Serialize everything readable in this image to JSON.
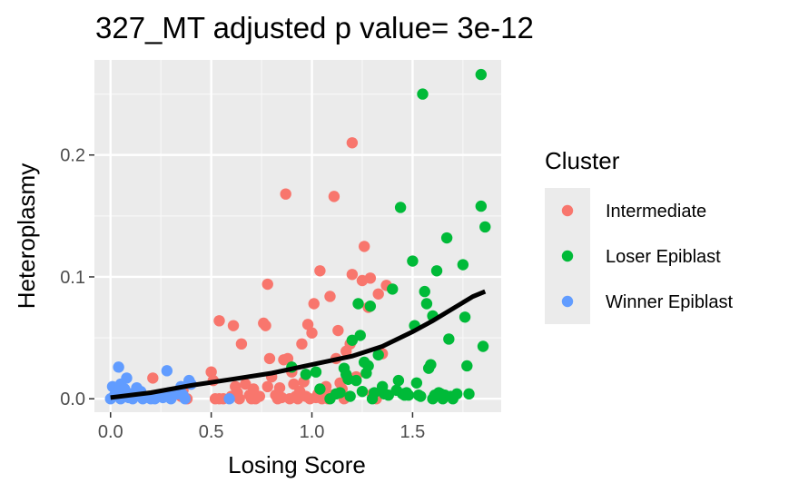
{
  "chart_data": {
    "type": "scatter",
    "title": "327_MT adjusted p value= 3e-12",
    "xlabel": "Losing Score",
    "ylabel": "Heteroplasmy",
    "xlim": [
      -0.08,
      1.94
    ],
    "ylim": [
      -0.011,
      0.278
    ],
    "x_ticks": [
      0.0,
      0.5,
      1.0,
      1.5
    ],
    "x_tick_labels": [
      "0.0",
      "0.5",
      "1.0",
      "1.5"
    ],
    "y_ticks": [
      0.0,
      0.1,
      0.2
    ],
    "y_tick_labels": [
      "0.0",
      "0.1",
      "0.2"
    ],
    "grid": true,
    "legend": {
      "title": "Cluster",
      "position": "right"
    },
    "series": [
      {
        "name": "Intermediate",
        "color": "#F8766D",
        "points": [
          [
            0.21,
            0.017
          ],
          [
            0.35,
            0.002
          ],
          [
            0.36,
            0.007
          ],
          [
            0.38,
            0.0
          ],
          [
            0.5,
            0.022
          ],
          [
            0.51,
            0.015
          ],
          [
            0.52,
            0.0
          ],
          [
            0.54,
            0.0
          ],
          [
            0.54,
            0.064
          ],
          [
            0.56,
            0.0
          ],
          [
            0.6,
            0.002
          ],
          [
            0.61,
            0.06
          ],
          [
            0.62,
            0.01
          ],
          [
            0.63,
            0.005
          ],
          [
            0.64,
            0.0
          ],
          [
            0.65,
            0.045
          ],
          [
            0.67,
            0.012
          ],
          [
            0.69,
            0.003
          ],
          [
            0.7,
            0.0
          ],
          [
            0.71,
            0.008
          ],
          [
            0.72,
            0.0
          ],
          [
            0.74,
            0.002
          ],
          [
            0.76,
            0.062
          ],
          [
            0.77,
            0.06
          ],
          [
            0.78,
            0.094
          ],
          [
            0.78,
            0.01
          ],
          [
            0.79,
            0.033
          ],
          [
            0.8,
            0.018
          ],
          [
            0.82,
            0.003
          ],
          [
            0.83,
            0.0
          ],
          [
            0.84,
            0.009
          ],
          [
            0.85,
            0.001
          ],
          [
            0.86,
            0.032
          ],
          [
            0.87,
            0.168
          ],
          [
            0.88,
            0.033
          ],
          [
            0.89,
            0.0
          ],
          [
            0.9,
            0.022
          ],
          [
            0.91,
            0.012
          ],
          [
            0.92,
            0.002
          ],
          [
            0.93,
            0.0
          ],
          [
            0.94,
            0.006
          ],
          [
            0.95,
            0.045
          ],
          [
            0.96,
            0.014
          ],
          [
            0.97,
            0.002
          ],
          [
            0.98,
            0.061
          ],
          [
            0.99,
            0.0
          ],
          [
            1.0,
            0.054
          ],
          [
            1.01,
            0.078
          ],
          [
            1.02,
            0.001
          ],
          [
            1.03,
            0.004
          ],
          [
            1.04,
            0.105
          ],
          [
            1.05,
            0.0
          ],
          [
            1.06,
            0.002
          ],
          [
            1.07,
            0.01
          ],
          [
            1.08,
            0.0
          ],
          [
            1.09,
            0.084
          ],
          [
            1.1,
            0.003
          ],
          [
            1.11,
            0.166
          ],
          [
            1.12,
            0.033
          ],
          [
            1.13,
            0.056
          ],
          [
            1.14,
            0.013
          ],
          [
            1.15,
            0.008
          ],
          [
            1.16,
            0.0
          ],
          [
            1.17,
            0.039
          ],
          [
            1.19,
            0.045
          ],
          [
            1.2,
            0.21
          ],
          [
            1.2,
            0.102
          ],
          [
            1.22,
            0.018
          ],
          [
            1.25,
            0.097
          ],
          [
            1.26,
            0.125
          ],
          [
            1.28,
            0.075
          ],
          [
            1.29,
            0.099
          ],
          [
            1.3,
            0.004
          ],
          [
            1.32,
            0.0
          ],
          [
            1.33,
            0.086
          ],
          [
            1.35,
            0.037
          ],
          [
            1.37,
            0.093
          ]
        ]
      },
      {
        "name": "Loser Epiblast",
        "color": "#00BA38",
        "points": [
          [
            0.9,
            0.026
          ],
          [
            0.97,
            0.02
          ],
          [
            1.02,
            0.022
          ],
          [
            1.04,
            0.008
          ],
          [
            1.09,
            0.0
          ],
          [
            1.12,
            0.004
          ],
          [
            1.14,
            0.005
          ],
          [
            1.16,
            0.025
          ],
          [
            1.17,
            0.02
          ],
          [
            1.18,
            0.016
          ],
          [
            1.19,
            0.002
          ],
          [
            1.2,
            0.048
          ],
          [
            1.22,
            0.015
          ],
          [
            1.23,
            0.078
          ],
          [
            1.24,
            0.052
          ],
          [
            1.25,
            0.006
          ],
          [
            1.26,
            0.03
          ],
          [
            1.27,
            0.021
          ],
          [
            1.28,
            0.027
          ],
          [
            1.29,
            0.076
          ],
          [
            1.3,
            0.0
          ],
          [
            1.31,
            0.005
          ],
          [
            1.33,
            0.036
          ],
          [
            1.35,
            0.01
          ],
          [
            1.36,
            0.004
          ],
          [
            1.38,
            0.003
          ],
          [
            1.4,
            0.09
          ],
          [
            1.42,
            0.007
          ],
          [
            1.43,
            0.015
          ],
          [
            1.44,
            0.157
          ],
          [
            1.45,
            0.004
          ],
          [
            1.46,
            0.003
          ],
          [
            1.47,
            0.005
          ],
          [
            1.48,
            0.003
          ],
          [
            1.5,
            0.113
          ],
          [
            1.51,
            0.06
          ],
          [
            1.52,
            0.013
          ],
          [
            1.53,
            0.003
          ],
          [
            1.54,
            0.002
          ],
          [
            1.55,
            0.25
          ],
          [
            1.56,
            0.088
          ],
          [
            1.57,
            0.078
          ],
          [
            1.58,
            0.025
          ],
          [
            1.59,
            0.028
          ],
          [
            1.6,
            0.068
          ],
          [
            1.6,
            0.0
          ],
          [
            1.61,
            0.003
          ],
          [
            1.62,
            0.105
          ],
          [
            1.63,
            0.005
          ],
          [
            1.64,
            0.004
          ],
          [
            1.65,
            0.0
          ],
          [
            1.66,
            0.003
          ],
          [
            1.67,
            0.132
          ],
          [
            1.68,
            0.049
          ],
          [
            1.69,
            0.002
          ],
          [
            1.7,
            0.0
          ],
          [
            1.72,
            0.004
          ],
          [
            1.75,
            0.11
          ],
          [
            1.76,
            0.067
          ],
          [
            1.77,
            0.027
          ],
          [
            1.78,
            0.004
          ],
          [
            1.84,
            0.158
          ],
          [
            1.84,
            0.266
          ],
          [
            1.85,
            0.043
          ],
          [
            1.86,
            0.141
          ]
        ]
      },
      {
        "name": "Winner Epiblast",
        "color": "#619CFF",
        "points": [
          [
            0.0,
            0.0
          ],
          [
            0.01,
            0.01
          ],
          [
            0.02,
            0.003
          ],
          [
            0.03,
            0.005
          ],
          [
            0.04,
            0.026
          ],
          [
            0.05,
            0.012
          ],
          [
            0.05,
            0.0
          ],
          [
            0.06,
            0.002
          ],
          [
            0.07,
            0.008
          ],
          [
            0.08,
            0.017
          ],
          [
            0.09,
            0.001
          ],
          [
            0.1,
            0.004
          ],
          [
            0.11,
            0.0
          ],
          [
            0.12,
            0.002
          ],
          [
            0.13,
            0.009
          ],
          [
            0.14,
            0.003
          ],
          [
            0.15,
            0.006
          ],
          [
            0.16,
            0.0
          ],
          [
            0.17,
            0.001
          ],
          [
            0.19,
            0.002
          ],
          [
            0.2,
            0.0
          ],
          [
            0.22,
            0.0
          ],
          [
            0.24,
            0.003
          ],
          [
            0.26,
            0.001
          ],
          [
            0.28,
            0.023
          ],
          [
            0.29,
            0.005
          ],
          [
            0.3,
            0.0
          ],
          [
            0.33,
            0.004
          ],
          [
            0.35,
            0.01
          ],
          [
            0.36,
            0.003
          ],
          [
            0.37,
            0.0
          ],
          [
            0.39,
            0.015
          ],
          [
            0.4,
            0.012
          ],
          [
            0.59,
            0.0
          ]
        ]
      }
    ],
    "trend_line": {
      "color": "#000000",
      "points": [
        [
          0.0,
          0.001
        ],
        [
          0.2,
          0.005
        ],
        [
          0.4,
          0.011
        ],
        [
          0.6,
          0.016
        ],
        [
          0.8,
          0.021
        ],
        [
          1.0,
          0.028
        ],
        [
          1.2,
          0.035
        ],
        [
          1.35,
          0.043
        ],
        [
          1.5,
          0.055
        ],
        [
          1.6,
          0.064
        ],
        [
          1.7,
          0.074
        ],
        [
          1.8,
          0.084
        ],
        [
          1.86,
          0.088
        ]
      ]
    }
  }
}
